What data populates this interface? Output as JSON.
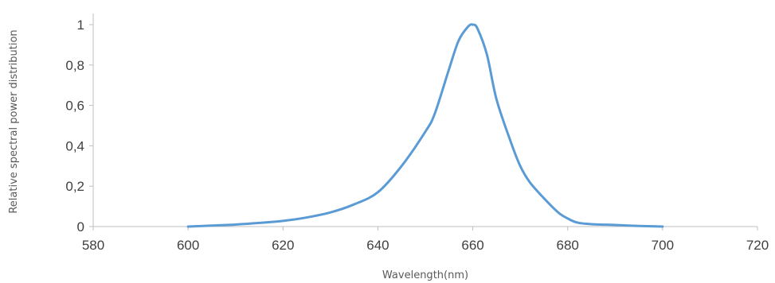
{
  "chart_data": {
    "type": "line",
    "title": "",
    "xlabel": "Wavelength(nm)",
    "ylabel": "Relative spectral power distribution",
    "xlim": [
      580,
      720
    ],
    "ylim": [
      0,
      1
    ],
    "x_ticks": [
      "580",
      "600",
      "620",
      "640",
      "660",
      "680",
      "700",
      "720"
    ],
    "y_ticks": [
      "0",
      "0,2",
      "0,4",
      "0,6",
      "0,8",
      "1"
    ],
    "grid": false,
    "legend": "none",
    "series": [
      {
        "color": "#5b9bd5",
        "x": [
          600,
          605,
          610,
          615,
          620,
          625,
          630,
          635,
          640,
          645,
          650,
          652,
          655,
          657,
          659,
          660,
          661,
          663,
          665,
          668,
          670,
          672,
          675,
          678,
          680,
          682,
          685,
          690,
          695,
          700
        ],
        "y": [
          0.0,
          0.005,
          0.01,
          0.018,
          0.028,
          0.045,
          0.07,
          0.11,
          0.17,
          0.3,
          0.47,
          0.56,
          0.78,
          0.92,
          0.99,
          1.0,
          0.98,
          0.85,
          0.63,
          0.42,
          0.3,
          0.22,
          0.14,
          0.07,
          0.04,
          0.02,
          0.012,
          0.008,
          0.003,
          0.0
        ]
      }
    ]
  }
}
